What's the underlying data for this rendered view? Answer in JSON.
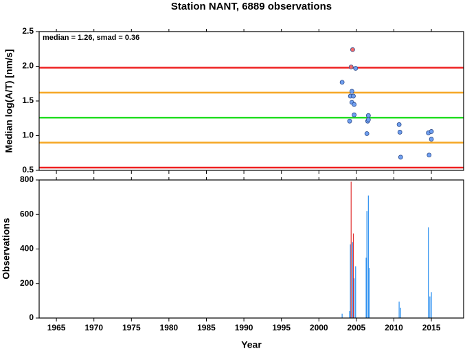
{
  "chart_data": [
    {
      "type": "scatter",
      "title": "Station NANT, 6889 observations",
      "ylabel": "Median log(A/T) [nm/s]",
      "annotation": "median = 1.26, smad = 0.36",
      "xlim": [
        1962.7,
        2019.3
      ],
      "xticks": [
        1965,
        1970,
        1975,
        1980,
        1985,
        1990,
        1995,
        2000,
        2005,
        2010,
        2015
      ],
      "ylim": [
        0.5,
        2.5
      ],
      "yticks": [
        {
          "value": 0.5,
          "label": "0.5"
        },
        {
          "value": 1,
          "label": "1.0"
        },
        {
          "value": 1.5,
          "label": "1.5"
        },
        {
          "value": 2,
          "label": "2.0"
        },
        {
          "value": 2.5,
          "label": "2.5"
        }
      ],
      "hlines": [
        {
          "value": 1.98,
          "color": "#ee2020"
        },
        {
          "value": 1.62,
          "color": "#f5a623"
        },
        {
          "value": 1.26,
          "color": "#22dd22"
        },
        {
          "value": 0.9,
          "color": "#f5a623"
        },
        {
          "value": 0.54,
          "color": "#ee2020"
        }
      ],
      "series": [
        {
          "color": "#6f9ff0",
          "x": [
            2003.1,
            2004.1,
            2004.4,
            2004.2,
            2004.4,
            2004.6,
            2004.7,
            2004.7,
            2004.9,
            2006.4,
            2006.5,
            2006.6,
            2006.6,
            2010.7,
            2010.8,
            2010.9,
            2014.6,
            2014.7,
            2015.0,
            2015.0
          ],
          "values": [
            1.77,
            1.21,
            1.64,
            1.57,
            1.48,
            1.57,
            1.45,
            1.3,
            1.97,
            1.03,
            1.21,
            1.29,
            1.23,
            1.16,
            1.05,
            0.69,
            1.04,
            0.72,
            1.06,
            0.95
          ]
        },
        {
          "color": "#f06a6a",
          "x": [
            2004.3,
            2004.5
          ],
          "values": [
            1.99,
            2.24
          ]
        }
      ]
    },
    {
      "type": "bar",
      "xlabel": "Year",
      "ylabel": "Observations",
      "xlim": [
        1962.7,
        2019.3
      ],
      "xticks": [
        1965,
        1970,
        1975,
        1980,
        1985,
        1990,
        1995,
        2000,
        2005,
        2010,
        2015
      ],
      "ylim": [
        0,
        800
      ],
      "yticks": [
        0,
        200,
        400,
        600,
        800
      ],
      "series": [
        {
          "color": "#2a8ff0",
          "x": [
            2003.1,
            2004.1,
            2004.2,
            2004.5,
            2004.6,
            2004.7,
            2004.9,
            2006.3,
            2006.4,
            2006.6,
            2006.7,
            2010.7,
            2010.9,
            2014.6,
            2014.8,
            2015.0
          ],
          "values": [
            25,
            40,
            427,
            440,
            230,
            230,
            300,
            350,
            620,
            710,
            290,
            95,
            60,
            525,
            125,
            150
          ]
        },
        {
          "color": "#e03030",
          "x": [
            2004.3,
            2004.6
          ],
          "values": [
            790,
            490
          ]
        }
      ]
    }
  ]
}
